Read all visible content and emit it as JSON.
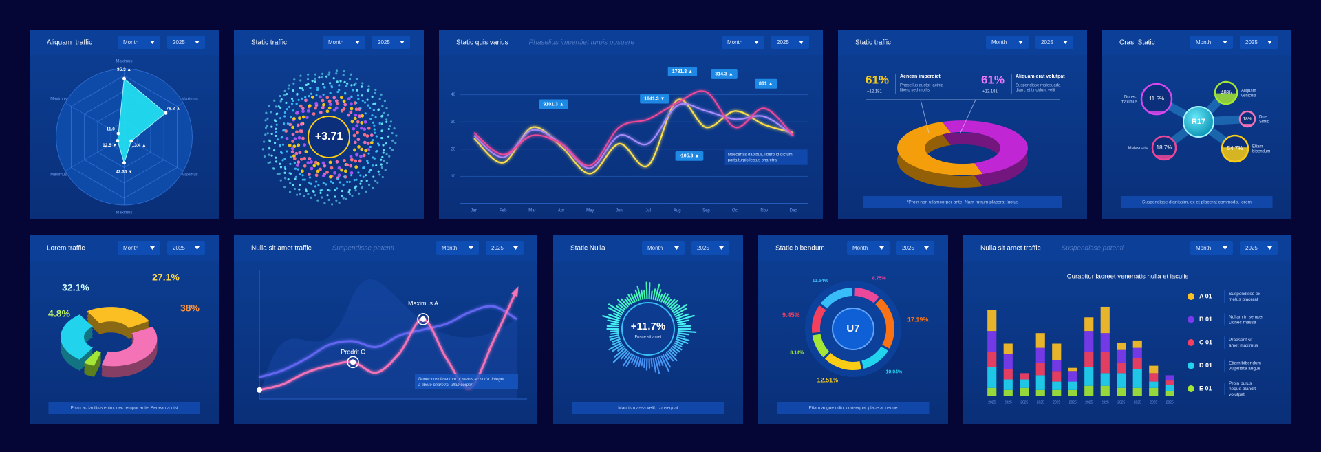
{
  "chart_data": [
    {
      "type": "radar",
      "title": "Aliquam  traffic",
      "controls": [
        "Month",
        "2025"
      ],
      "categories": [
        "Maximus",
        "Maximus",
        "Maximus",
        "Maximus",
        "Maximus",
        "Maximus"
      ],
      "values": [
        95.3,
        78.2,
        13.4,
        42.35,
        12.5,
        11
      ],
      "value_labels": [
        "95.3 ▲",
        "78.2 ▲",
        "13.4 ▲",
        "42.35 ▼",
        "12.5 ▼",
        "11.0"
      ],
      "ylim": [
        0,
        100
      ],
      "color": "#22e3f2"
    },
    {
      "type": "ring",
      "title": "Static traffic",
      "controls": [
        "Month",
        "2025"
      ],
      "values": [
        3.71
      ],
      "value_labels": [
        "+3.71"
      ]
    },
    {
      "type": "line",
      "title": "Static quis varius",
      "subtitle": "Phaselius imperdiet turpis posuere",
      "controls": [
        "Month",
        "2025"
      ],
      "categories": [
        "Jan",
        "Feb",
        "Mar",
        "Apr",
        "May",
        "Jun",
        "Jul",
        "Aug",
        "Sep",
        "Oct",
        "Nov",
        "Dec"
      ],
      "ylim": [
        0,
        50
      ],
      "yticks": [
        10,
        20,
        30,
        40
      ],
      "series": [
        {
          "color": "#fde047",
          "values": [
            24,
            15,
            28,
            21,
            11,
            22,
            14,
            38,
            28,
            34,
            29,
            26
          ]
        },
        {
          "color": "#a78bfa",
          "values": [
            25,
            17,
            27,
            22,
            13,
            25,
            22,
            36,
            34,
            31,
            32,
            25
          ]
        },
        {
          "color": "#ec4899",
          "values": [
            26,
            18,
            25,
            22,
            14,
            28,
            31,
            37,
            41,
            28,
            35,
            25
          ]
        }
      ],
      "annotations": [
        "9101.3 ▲",
        "1841.3 ▼",
        "1781.3 ▲",
        "314.3 ▲",
        "861 ▲",
        "-105.3 ▲"
      ],
      "note": "Maecenas dapibus, libero id dictum porta,turpis lectus pharetra"
    },
    {
      "type": "torus",
      "title": "Static traffic",
      "controls": [
        "Month",
        "2025"
      ],
      "categories": [
        "Aenean imperdiet",
        "Aliquam erat volutpat"
      ],
      "descriptions": [
        "Phasellus auctor lacinia libero sed mollis",
        "Suspendisse malesuada diam, et tincidunt velit"
      ],
      "values": [
        61,
        61
      ],
      "value_labels": [
        "61%",
        "61%"
      ],
      "changes": [
        "+12.181",
        "+12.181"
      ],
      "colors": [
        "#f59e0b",
        "#c026d3"
      ],
      "footer": "*Proin non ullamcorper ante. Nam rutrum placerat luctus"
    },
    {
      "type": "nodes",
      "title": "Cras  Static",
      "controls": [
        "Month",
        "2025"
      ],
      "center_label": "R17",
      "categories": [
        "Donec maximus",
        "Aliquam vehicula",
        "Duis Simid",
        "Malesuada",
        "Etiam bibendum"
      ],
      "values": [
        11.5,
        48,
        18,
        18.7,
        54.7
      ],
      "value_labels": [
        "11.5%",
        "48%",
        "18%",
        "18.7%",
        "54.7%"
      ],
      "colors": [
        "#d946ef",
        "#a3e635",
        "#f472b6",
        "#ec4899",
        "#facc15"
      ],
      "footer": "Suspendisse dignissim, ex et placerat commodo, lorem"
    },
    {
      "type": "pie3d",
      "title": "Lorem traffic",
      "controls": [
        "Month",
        "2025"
      ],
      "values": [
        32.1,
        27.1,
        38,
        4.8
      ],
      "value_labels": [
        "32.1%",
        "27.1%",
        "38%",
        "4.8%"
      ],
      "colors": [
        "#22d3ee",
        "#fbbf24",
        "#f472b6",
        "#a3e635"
      ],
      "footer": "Proin ac facilisis enim, nec tempor ante. Aenean a nisi"
    },
    {
      "type": "line2",
      "title": "Nulla sit amet traffic",
      "subtitle": "Suspendisse potenti",
      "controls": [
        "Month",
        "2025"
      ],
      "ylim": [
        0,
        100
      ],
      "series": [
        {
          "color": "#6366f1",
          "values": [
            14,
            20,
            30,
            42,
            45,
            40,
            50,
            55,
            60,
            70,
            75,
            64
          ]
        },
        {
          "color": "#f472b6",
          "values": [
            3,
            8,
            18,
            24,
            27,
            18,
            35,
            64,
            30,
            5,
            45,
            89
          ]
        }
      ],
      "annotations": [
        "Maximus A",
        "Prodrit C"
      ],
      "note": "Donec condimentum ut metus ac porta. Integer a libero pharetra, ullamcorper"
    },
    {
      "type": "gauge",
      "title": "Static Nulla",
      "controls": [
        "Month",
        "2025"
      ],
      "values": [
        11.7
      ],
      "value_labels": [
        "+11.7%"
      ],
      "caption": "Fusce sit amet",
      "footer": "Mauris massa velit, consequat"
    },
    {
      "type": "donut",
      "title": "Static bibendum",
      "controls": [
        "Month",
        "2025"
      ],
      "center_label": "U7",
      "values": [
        8.75,
        17.19,
        10.04,
        12.51,
        8.14,
        9.45,
        11.54
      ],
      "value_labels": [
        "8.75%",
        "17.19%",
        "10.04%",
        "12.51%",
        "8.14%",
        "9.45%",
        "11.54%"
      ],
      "colors": [
        "#ec4899",
        "#f97316",
        "#22d3ee",
        "#facc15",
        "#a3e635",
        "#f43f5e",
        "#38bdf8"
      ],
      "footer": "Etiam augue odio, consequat placerat neque"
    },
    {
      "type": "stacked_bar",
      "title": "Nulla sit amet traffic",
      "subtitle": "Suspendisse potenti",
      "controls": [
        "Month",
        "2025"
      ],
      "chart_title": "Curabitur laoreet venenatis nulla et iaculis",
      "categories": [
        "2025",
        "2025",
        "2025",
        "2025",
        "2025",
        "2025",
        "2025",
        "2025",
        "2025",
        "2025",
        "2025",
        "2025"
      ],
      "ylim": [
        0,
        100
      ],
      "series": [
        {
          "name": "A 01",
          "description": "Suspendisse ex metus placerat",
          "color": "#fbbf24",
          "values": [
            20,
            10,
            0,
            14,
            16,
            3,
            13,
            25,
            7,
            7,
            7,
            0
          ]
        },
        {
          "name": "B 01",
          "description": "Nullam in semper Donec massa",
          "color": "#7c3aed",
          "values": [
            20,
            14,
            0,
            14,
            10,
            10,
            20,
            18,
            12,
            10,
            0,
            5
          ]
        },
        {
          "name": "C 01",
          "description": "Praesent sit amet maximus",
          "color": "#f43f5e",
          "values": [
            14,
            10,
            6,
            12,
            10,
            0,
            14,
            20,
            10,
            10,
            8,
            4
          ]
        },
        {
          "name": "D 01",
          "description": "Etiam bibendum vulputate augue",
          "color": "#22d3ee",
          "values": [
            20,
            10,
            8,
            14,
            8,
            8,
            18,
            12,
            14,
            18,
            6,
            6
          ]
        },
        {
          "name": "E 01",
          "description": "Proin purus neque blandit volutpat",
          "color": "#a3e635",
          "values": [
            8,
            6,
            8,
            6,
            6,
            6,
            10,
            10,
            8,
            8,
            8,
            5
          ]
        }
      ]
    }
  ]
}
